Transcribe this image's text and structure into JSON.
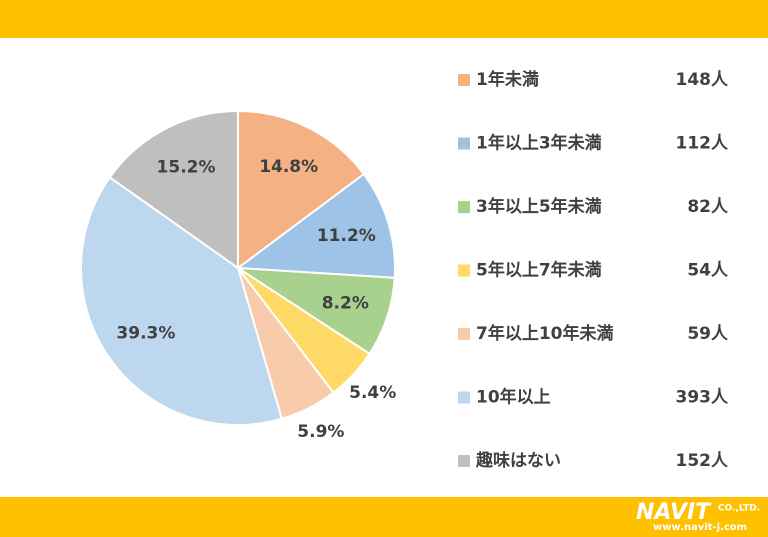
{
  "chart_data": {
    "type": "pie",
    "categories": [
      "1年未満",
      "1年以上3年未満",
      "3年以上5年未満",
      "5年以上7年未満",
      "7年以上10年未満",
      "10年以上",
      "趣味はない"
    ],
    "values": [
      14.8,
      11.2,
      8.2,
      5.4,
      5.9,
      39.3,
      15.2
    ],
    "value_labels": [
      "14.8%",
      "11.2%",
      "8.2%",
      "5.4%",
      "5.9%",
      "39.3%",
      "15.2%"
    ],
    "counts": [
      "148人",
      "112人",
      "82人",
      "54人",
      "59人",
      "393人",
      "152人"
    ],
    "colors": [
      "#f4b183",
      "#9dc3e6",
      "#a9d18e",
      "#ffd966",
      "#f8cbad",
      "#bdd7ee",
      "#bfbfbf"
    ],
    "legend": "right"
  },
  "footer": {
    "logo": "NAVIT",
    "company": "CO.,LTD.",
    "url": "www.navit-j.com"
  }
}
